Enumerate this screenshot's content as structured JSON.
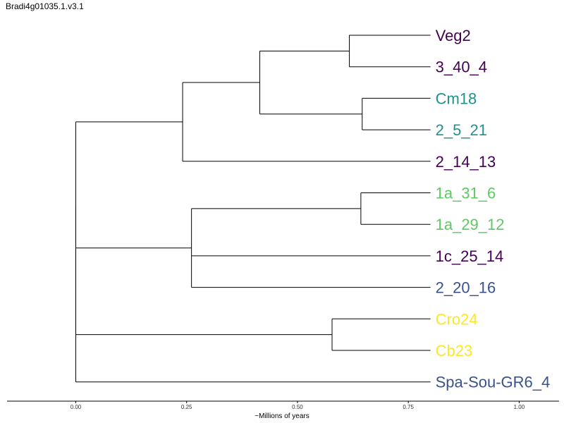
{
  "title": "Bradi4g01035.1.v3.1",
  "chart_data": {
    "type": "dendrogram",
    "title": "Bradi4g01035.1.v3.1",
    "xlabel": "~Millions of years",
    "xticks": [
      0.0,
      0.25,
      0.5,
      0.75,
      1.0
    ],
    "xtick_labels": [
      "0.00",
      "0.25",
      "0.50",
      "0.75",
      "1.00"
    ],
    "xlim": [
      -0.155,
      1.09
    ],
    "leaves": [
      {
        "name": "Veg2",
        "color": "#440154"
      },
      {
        "name": "3_40_4",
        "color": "#440154"
      },
      {
        "name": "Cm18",
        "color": "#21918c"
      },
      {
        "name": "2_5_21",
        "color": "#21918c"
      },
      {
        "name": "2_14_13",
        "color": "#440154"
      },
      {
        "name": "1a_31_6",
        "color": "#5ec962"
      },
      {
        "name": "1a_29_12",
        "color": "#5ec962"
      },
      {
        "name": "1c_25_14",
        "color": "#440154"
      },
      {
        "name": "2_20_16",
        "color": "#3b528b"
      },
      {
        "name": "Cro24",
        "color": "#fde725"
      },
      {
        "name": "Cb23",
        "color": "#fde725"
      },
      {
        "name": "Spa-Sou-GR6_4",
        "color": "#3b528b"
      }
    ],
    "leaf_x": 0.8,
    "tree": {
      "x": 0.0,
      "children": [
        {
          "x": 0.0,
          "children": [
            {
              "x": 0.241,
              "children": [
                {
                  "x": 0.415,
                  "children": [
                    {
                      "x": 0.617,
                      "children": [
                        {
                          "leaf": 0
                        },
                        {
                          "leaf": 1
                        }
                      ]
                    },
                    {
                      "x": 0.646,
                      "children": [
                        {
                          "leaf": 2
                        },
                        {
                          "leaf": 3
                        }
                      ]
                    }
                  ]
                },
                {
                  "leaf": 4
                }
              ]
            },
            {
              "x": 0.0,
              "children": [
                {
                  "x": 0.261,
                  "children": [
                    {
                      "x": 0.643,
                      "children": [
                        {
                          "leaf": 5
                        },
                        {
                          "leaf": 6
                        }
                      ]
                    },
                    {
                      "leaf": 7
                    },
                    {
                      "leaf": 8
                    }
                  ]
                },
                {
                  "x": 0.578,
                  "children": [
                    {
                      "leaf": 9
                    },
                    {
                      "leaf": 10
                    }
                  ]
                }
              ]
            }
          ]
        },
        {
          "leaf": 11
        }
      ]
    }
  }
}
